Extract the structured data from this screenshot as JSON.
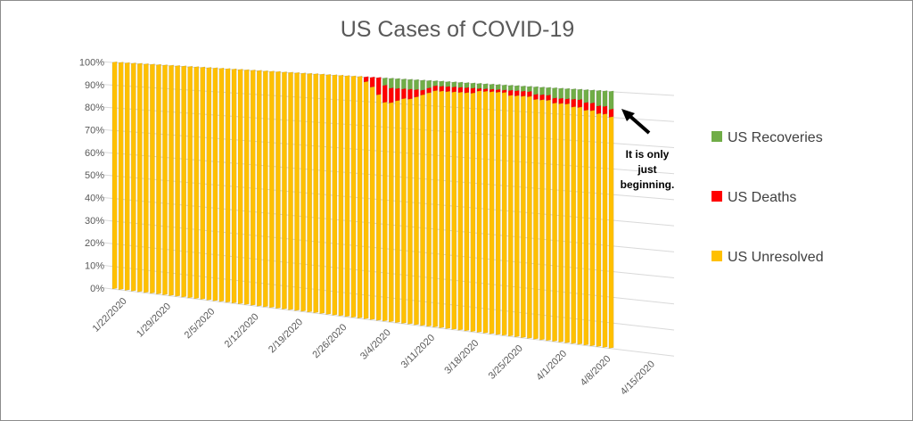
{
  "chart_data": {
    "type": "bar",
    "stacked": "percent",
    "title": "US Cases of COVID-19",
    "start_date": "1/22/2020",
    "end_date": "4/9/2020",
    "x_tick_labels": [
      "1/22/2020",
      "1/29/2020",
      "2/5/2020",
      "2/12/2020",
      "2/19/2020",
      "2/26/2020",
      "3/4/2020",
      "3/11/2020",
      "3/18/2020",
      "3/25/2020",
      "4/1/2020",
      "4/8/2020",
      "4/15/2020"
    ],
    "y_tick_labels": [
      "0%",
      "10%",
      "20%",
      "30%",
      "40%",
      "50%",
      "60%",
      "70%",
      "80%",
      "90%",
      "100%"
    ],
    "ylim": [
      0,
      100
    ],
    "grid": true,
    "legend_position": "right",
    "series": [
      {
        "name": "US Unresolved",
        "color": "#FFC000",
        "values": [
          100,
          100,
          100,
          100,
          100,
          100,
          100,
          100,
          100,
          100,
          100,
          100,
          100,
          100,
          100,
          100,
          100,
          100,
          100,
          100,
          100,
          100,
          100,
          100,
          100,
          100,
          100,
          100,
          100,
          100,
          100,
          100,
          100,
          100,
          100,
          100,
          100,
          100,
          100,
          100,
          98,
          96,
          93,
          90,
          90,
          91,
          92,
          92,
          93,
          94,
          95,
          96,
          96,
          96,
          96,
          96,
          96,
          96,
          97,
          97,
          97,
          97,
          97,
          96,
          96,
          96,
          96,
          95,
          95,
          95,
          94,
          94,
          94,
          93,
          93,
          92,
          92,
          91,
          91,
          90
        ]
      },
      {
        "name": "US Deaths",
        "color": "#FF0000",
        "values": [
          0,
          0,
          0,
          0,
          0,
          0,
          0,
          0,
          0,
          0,
          0,
          0,
          0,
          0,
          0,
          0,
          0,
          0,
          0,
          0,
          0,
          0,
          0,
          0,
          0,
          0,
          0,
          0,
          0,
          0,
          0,
          0,
          0,
          0,
          0,
          0,
          0,
          0,
          0,
          0,
          2,
          4,
          7,
          7,
          6,
          5,
          4,
          4,
          3,
          2,
          2,
          2,
          2,
          2,
          2,
          2,
          2,
          2,
          1,
          1,
          1,
          1,
          1,
          2,
          2,
          2,
          2,
          2,
          2,
          2,
          2,
          2,
          2,
          3,
          3,
          3,
          3,
          3,
          3,
          3
        ]
      },
      {
        "name": "US Recoveries",
        "color": "#70AD47",
        "values": [
          0,
          0,
          0,
          0,
          0,
          0,
          0,
          0,
          0,
          0,
          0,
          0,
          0,
          0,
          0,
          0,
          0,
          0,
          0,
          0,
          0,
          0,
          0,
          0,
          0,
          0,
          0,
          0,
          0,
          0,
          0,
          0,
          0,
          0,
          0,
          0,
          0,
          0,
          0,
          0,
          0,
          0,
          0,
          3,
          4,
          4,
          4,
          4,
          4,
          4,
          3,
          2,
          2,
          2,
          2,
          2,
          2,
          2,
          2,
          2,
          2,
          2,
          2,
          2,
          2,
          2,
          2,
          3,
          3,
          3,
          4,
          4,
          4,
          4,
          4,
          5,
          5,
          6,
          6,
          7
        ]
      }
    ],
    "annotation": {
      "lines": [
        "It is only",
        "just",
        "beginning."
      ]
    }
  }
}
